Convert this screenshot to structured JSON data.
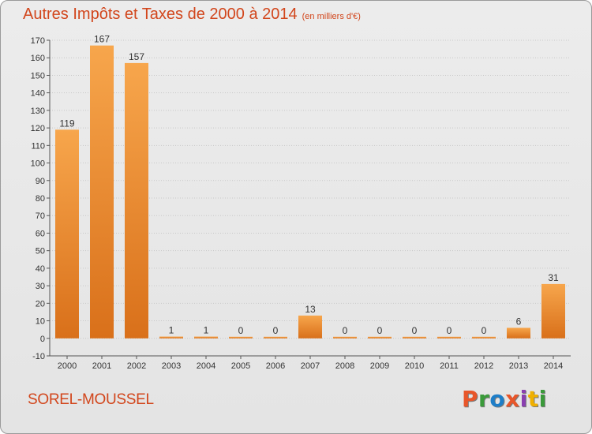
{
  "header": {
    "title": "Autres Impôts et Taxes de 2000 à 2014",
    "unit": "(en milliers d'€)"
  },
  "footer": {
    "commune": "SOREL-MOUSSEL",
    "logo_text": "Proxiti",
    "logo_colors": [
      "#e8562a",
      "#3a9a3a",
      "#1e7ec8",
      "#e8562a",
      "#8a3fb0",
      "#f0b000",
      "#3a9a3a"
    ]
  },
  "colors": {
    "title": "#d2461c",
    "bar_light": "#f7a64c",
    "bar_dark": "#d9701a",
    "gridline": "#c8c8c8",
    "axis": "#555555"
  },
  "chart_data": {
    "type": "bar",
    "title": "Autres Impôts et Taxes de 2000 à 2014",
    "subtitle": "(en milliers d'€)",
    "xlabel": "",
    "ylabel": "",
    "categories": [
      "2000",
      "2001",
      "2002",
      "2003",
      "2004",
      "2005",
      "2006",
      "2007",
      "2008",
      "2009",
      "2010",
      "2011",
      "2012",
      "2013",
      "2014"
    ],
    "values": [
      119,
      167,
      157,
      1,
      1,
      0,
      0,
      13,
      0,
      0,
      0,
      0,
      0,
      6,
      31
    ],
    "ylim": [
      -10,
      170
    ],
    "yticks": [
      -10,
      0,
      10,
      20,
      30,
      40,
      50,
      60,
      70,
      80,
      90,
      100,
      110,
      120,
      130,
      140,
      150,
      160,
      170
    ],
    "grid": true,
    "data_labels": true
  }
}
